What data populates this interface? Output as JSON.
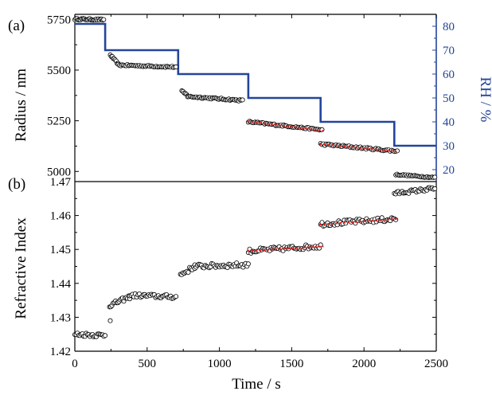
{
  "chart_data": [
    {
      "panel": "(a)",
      "type": "scatter",
      "xlabel": "Time / s",
      "ylabel": "Radius / nm",
      "xlim": [
        0,
        2500
      ],
      "ylim": [
        4950,
        5775
      ],
      "yticks": [
        "5000",
        "5250",
        "5500",
        "5750"
      ],
      "right_axis": {
        "label": "RH / %",
        "ylim": [
          15,
          85
        ],
        "ticks": [
          "20",
          "30",
          "40",
          "50",
          "60",
          "70",
          "80"
        ],
        "color": "#24459a"
      },
      "series": [
        {
          "name": "Radius",
          "marker": "open-circle",
          "segments": [
            {
              "x0": 0,
              "x1": 200,
              "y0": 5752,
              "y1": 5748,
              "n": 28,
              "noise": 4
            },
            {
              "x0": 245,
              "x1": 300,
              "y0": 5575,
              "y1": 5530,
              "n": 9,
              "noise": 4
            },
            {
              "x0": 300,
              "x1": 700,
              "y0": 5525,
              "y1": 5515,
              "n": 45,
              "noise": 4
            },
            {
              "x0": 740,
              "x1": 780,
              "y0": 5395,
              "y1": 5375,
              "n": 6,
              "noise": 4
            },
            {
              "x0": 780,
              "x1": 1160,
              "y0": 5370,
              "y1": 5350,
              "n": 45,
              "noise": 4
            },
            {
              "x0": 1200,
              "x1": 1710,
              "y0": 5245,
              "y1": 5205,
              "n": 55,
              "noise": 4
            },
            {
              "x0": 1700,
              "x1": 2230,
              "y0": 5135,
              "y1": 5100,
              "n": 55,
              "noise": 5
            },
            {
              "x0": 2220,
              "x1": 2490,
              "y0": 4985,
              "y1": 4970,
              "n": 32,
              "noise": 3
            }
          ]
        },
        {
          "name": "RH",
          "color": "#24459a",
          "type": "step",
          "x": [
            0,
            210,
            210,
            715,
            715,
            1200,
            1200,
            1700,
            1700,
            2210,
            2210,
            2500
          ],
          "y": [
            81,
            81,
            70,
            70,
            60,
            60,
            50,
            50,
            40,
            40,
            30,
            30
          ]
        },
        {
          "name": "fit",
          "color": "#e02020",
          "type": "dashed-line",
          "lines": [
            {
              "x": [
                1190,
                1720
              ],
              "y": [
                5248,
                5200
              ]
            },
            {
              "x": [
                1690,
                2230
              ],
              "y": [
                5136,
                5098
              ]
            }
          ]
        }
      ]
    },
    {
      "panel": "(b)",
      "type": "scatter",
      "xlabel": "Time / s",
      "ylabel": "Refractive Index",
      "xlim": [
        0,
        2500
      ],
      "ylim": [
        1.42,
        1.47
      ],
      "xticks": [
        "0",
        "500",
        "1000",
        "1500",
        "2000",
        "2500"
      ],
      "yticks": [
        "1.42",
        "1.43",
        "1.44",
        "1.45",
        "1.46",
        "1.47"
      ],
      "series": [
        {
          "name": "Refractive Index",
          "marker": "open-circle",
          "segments": [
            {
              "x0": 0,
              "x1": 210,
              "y0": 1.425,
              "y1": 1.4247,
              "n": 25,
              "noise": 0.0006
            },
            {
              "x0": 240,
              "x1": 380,
              "y0": 1.4335,
              "y1": 1.436,
              "n": 18,
              "noise": 0.0006
            },
            {
              "x0": 380,
              "x1": 700,
              "y0": 1.4365,
              "y1": 1.436,
              "n": 35,
              "noise": 0.0006
            },
            {
              "x0": 730,
              "x1": 830,
              "y0": 1.4425,
              "y1": 1.445,
              "n": 12,
              "noise": 0.0007
            },
            {
              "x0": 830,
              "x1": 1200,
              "y0": 1.445,
              "y1": 1.4455,
              "n": 42,
              "noise": 0.0007
            },
            {
              "x0": 1200,
              "x1": 1700,
              "y0": 1.4495,
              "y1": 1.451,
              "n": 55,
              "noise": 0.0007
            },
            {
              "x0": 1700,
              "x1": 2220,
              "y0": 1.4575,
              "y1": 1.459,
              "n": 55,
              "noise": 0.0007
            },
            {
              "x0": 2210,
              "x1": 2490,
              "y0": 1.4665,
              "y1": 1.468,
              "n": 32,
              "noise": 0.0005
            }
          ]
        },
        {
          "name": "fit",
          "color": "#e02020",
          "type": "dashed-line",
          "lines": [
            {
              "x": [
                1190,
                1720
              ],
              "y": [
                1.4495,
                1.4509
              ]
            },
            {
              "x": [
                1690,
                2230
              ],
              "y": [
                1.4573,
                1.459
              ]
            }
          ]
        }
      ],
      "extra_points": [
        {
          "x": 245,
          "y": 1.429
        }
      ]
    }
  ]
}
